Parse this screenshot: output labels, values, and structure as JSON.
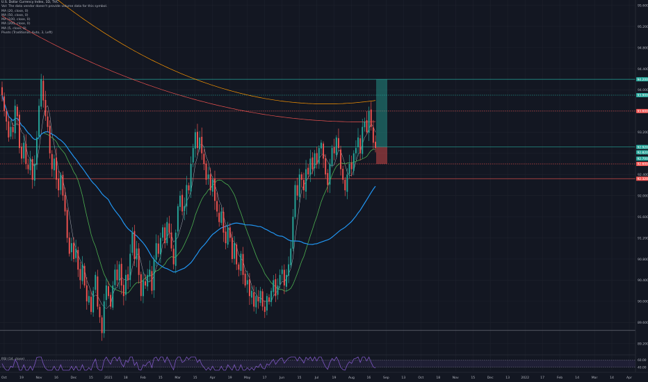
{
  "legend": {
    "title": "U.S. Dollar Currency Index, 1D, TVC",
    "lines": [
      "Vol: The data vendor doesn't provide volume data for this symbol.",
      "MA (20, close, 0)",
      "MA (50, close, 0)",
      "MA (100, close, 0)",
      "MA (200, close, 0)",
      "MA (5, close, 0)",
      "Pivots (Traditional, Auto, 3, Left)"
    ],
    "rsi": "RSI (14, close)"
  },
  "chart_data": {
    "type": "candlestick",
    "symbol": "U.S. Dollar Currency Index",
    "interval": "1D",
    "ylim": [
      89.0,
      95.7
    ],
    "y_ticks": [
      "95.600",
      "95.200",
      "94.800",
      "94.400",
      "94.000",
      "93.600",
      "93.200",
      "92.800",
      "92.400",
      "92.000",
      "91.600",
      "91.200",
      "90.800",
      "90.400",
      "90.000",
      "89.600",
      "89.200"
    ],
    "x_ticks": [
      "Oct",
      "19",
      "Nov",
      "16",
      "Dec",
      "15",
      "2021",
      "18",
      "Feb",
      "15",
      "Mar",
      "15",
      "Apr",
      "19",
      "May",
      "17",
      "Jun",
      "15",
      "Jul",
      "19",
      "Aug",
      "16",
      "Sep",
      "13",
      "Oct",
      "18",
      "Nov",
      "15",
      "Dec",
      "13",
      "2022",
      "17",
      "Feb",
      "14",
      "Mar",
      "14",
      "Apr"
    ],
    "close_series": [
      93.9,
      93.6,
      93.4,
      93.1,
      93.3,
      93.2,
      93.7,
      93.5,
      92.9,
      92.7,
      93.0,
      92.6,
      92.5,
      92.7,
      92.3,
      92.6,
      93.1,
      93.7,
      94.2,
      93.8,
      93.5,
      93.3,
      92.8,
      92.5,
      92.7,
      92.3,
      92.1,
      92.4,
      92.0,
      91.7,
      91.2,
      90.9,
      91.1,
      90.8,
      91.0,
      90.6,
      90.4,
      90.7,
      90.3,
      90.0,
      90.1,
      89.8,
      90.2,
      90.5,
      89.9,
      89.7,
      89.4,
      90.0,
      90.3,
      90.1,
      89.9,
      90.3,
      90.6,
      90.4,
      90.7,
      90.3,
      90.1,
      90.5,
      90.4,
      90.9,
      91.3,
      90.8,
      91.0,
      90.5,
      90.1,
      90.4,
      90.3,
      90.5,
      90.6,
      90.2,
      90.8,
      91.1,
      90.9,
      91.2,
      91.4,
      91.1,
      91.5,
      91.3,
      91.0,
      90.7,
      91.3,
      91.8,
      92.0,
      91.7,
      91.8,
      92.2,
      92.1,
      92.6,
      92.9,
      93.2,
      92.9,
      93.1,
      92.8,
      92.6,
      92.3,
      92.4,
      92.1,
      92.3,
      91.9,
      91.7,
      91.5,
      91.7,
      91.3,
      91.1,
      91.4,
      91.2,
      90.8,
      91.1,
      90.7,
      90.6,
      90.9,
      90.5,
      90.3,
      90.4,
      90.1,
      90.2,
      89.9,
      90.1,
      90.0,
      90.2,
      89.9,
      89.8,
      90.1,
      90.0,
      90.2,
      90.4,
      90.1,
      90.3,
      90.5,
      90.6,
      90.3,
      90.5,
      90.7,
      91.0,
      91.6,
      92.2,
      92.0,
      92.4,
      92.3,
      92.1,
      92.5,
      92.4,
      92.7,
      92.5,
      92.8,
      92.6,
      92.9,
      93.0,
      92.7,
      92.4,
      92.2,
      92.6,
      92.9,
      92.8,
      93.1,
      92.9,
      92.5,
      92.3,
      92.1,
      92.4,
      92.6,
      92.5,
      92.8,
      92.9,
      93.1,
      92.8,
      93.3,
      93.4,
      93.2,
      93.6,
      93.3,
      93.0,
      92.9
    ],
    "horizontal_levels": [
      {
        "value": 94.2,
        "label": "94.200",
        "color": "#26a69a",
        "style": "solid"
      },
      {
        "value": 93.9,
        "label": "93.900",
        "color": "#26a69a",
        "style": "dotted"
      },
      {
        "value": 93.6,
        "label": "93.600",
        "color": "#ef5350",
        "style": "dotted"
      },
      {
        "value": 92.92,
        "label": "92.920",
        "color": "#26a69a",
        "style": "solid"
      },
      {
        "value": 92.6,
        "label": "92.600",
        "color": "#ef5350",
        "style": "dotted"
      },
      {
        "value": 92.32,
        "label": "92.320",
        "color": "#ef5350",
        "style": "solid"
      },
      {
        "value": 89.45,
        "label": "89.450",
        "color": "#787b86",
        "style": "solid"
      }
    ],
    "position_tool": {
      "entry": 92.92,
      "target": 94.2,
      "stop": 92.6
    },
    "price_badges": [
      {
        "value": 94.2,
        "text": "94.200",
        "color": "#26a69a"
      },
      {
        "value": 93.9,
        "text": "93.900",
        "color": "#26a69a"
      },
      {
        "value": 93.6,
        "text": "93.600",
        "color": "#ef5350"
      },
      {
        "value": 92.92,
        "text": "92.920",
        "color": "#26a69a"
      },
      {
        "value": 92.82,
        "text": "92.820",
        "color": "#26a69a"
      },
      {
        "value": 92.7,
        "text": "92.700",
        "color": "#26a69a"
      },
      {
        "value": 92.6,
        "text": "92.600",
        "color": "#ef5350"
      },
      {
        "value": 92.32,
        "text": "92.320",
        "color": "#ef5350"
      }
    ],
    "rsi": {
      "ylim": [
        30,
        70
      ],
      "ticks": [
        "60.00",
        "40.00"
      ]
    },
    "colors": {
      "up": "#26a69a",
      "down": "#ef5350",
      "ma20": "#4caf50",
      "ma50": "#2196f3",
      "ma100": "#ef5350",
      "ma200": "#ff9800",
      "rsi": "#7e57c2",
      "bg": "#131722",
      "grid": "#1e222d",
      "text": "#b2b5be"
    }
  }
}
